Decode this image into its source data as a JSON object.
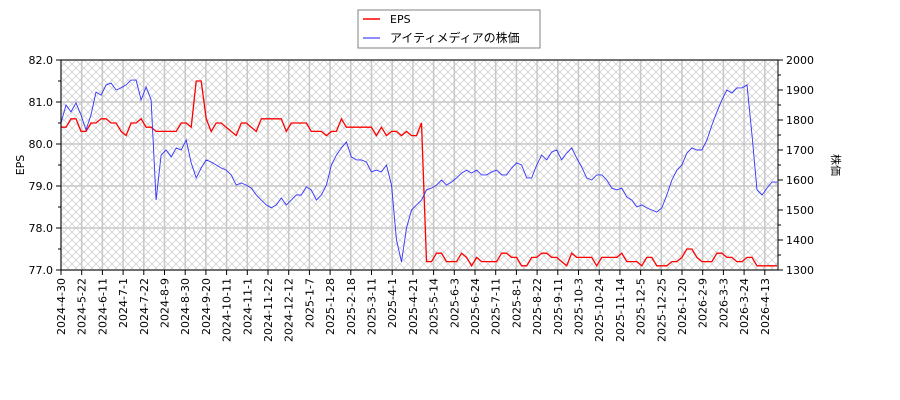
{
  "chart_data": {
    "type": "line",
    "title": "",
    "ylabel": "EPS",
    "y2label": "株価",
    "ylim": [
      77.0,
      82.0
    ],
    "y2lim": [
      1300,
      2000
    ],
    "yticks": [
      "77.0",
      "78.0",
      "79.0",
      "80.0",
      "81.0",
      "82.0"
    ],
    "y2ticks": [
      "1300",
      "1400",
      "1500",
      "1600",
      "1700",
      "1800",
      "1900",
      "2000"
    ],
    "x_range": [
      "2024-4-30",
      "2026-4-21"
    ],
    "xticks": [
      "2024-4-30",
      "2024-5-22",
      "2024-6-11",
      "2024-7-1",
      "2024-7-22",
      "2024-8-9",
      "2024-8-30",
      "2024-9-20",
      "2024-10-11",
      "2024-11-1",
      "2024-11-22",
      "2024-12-12",
      "2025-1-7",
      "2025-1-28",
      "2025-2-18",
      "2025-3-11",
      "2025-4-1",
      "2025-4-21",
      "2025-5-14",
      "2025-6-3",
      "2025-6-24",
      "2025-7-11",
      "2025-8-1",
      "2025-8-22",
      "2025-9-11",
      "2025-10-3",
      "2025-10-24",
      "2025-11-14",
      "2025-12-5",
      "2025-12-25",
      "2026-1-20",
      "2026-2-9",
      "2026-3-3",
      "2026-3-24",
      "2026-4-13"
    ],
    "grid": true,
    "legend_position": "top-center",
    "series": [
      {
        "name": "EPS",
        "axis": "left",
        "color": "#ff0000",
        "values": [
          80.4,
          80.4,
          80.6,
          80.6,
          80.3,
          80.3,
          80.5,
          80.5,
          80.6,
          80.6,
          80.5,
          80.5,
          80.3,
          80.2,
          80.5,
          80.5,
          80.6,
          80.4,
          80.4,
          80.3,
          80.3,
          80.3,
          80.3,
          80.3,
          80.5,
          80.5,
          80.4,
          81.5,
          81.5,
          80.6,
          80.3,
          80.5,
          80.5,
          80.4,
          80.3,
          80.2,
          80.5,
          80.5,
          80.4,
          80.3,
          80.6,
          80.6,
          80.6,
          80.6,
          80.6,
          80.3,
          80.5,
          80.5,
          80.5,
          80.5,
          80.3,
          80.3,
          80.3,
          80.2,
          80.3,
          80.3,
          80.6,
          80.4,
          80.4,
          80.4,
          80.4,
          80.4,
          80.4,
          80.2,
          80.4,
          80.2,
          80.3,
          80.3,
          80.2,
          80.3,
          80.2,
          80.2,
          80.5,
          77.2,
          77.2,
          77.4,
          77.4,
          77.2,
          77.2,
          77.2,
          77.4,
          77.3,
          77.1,
          77.3,
          77.2,
          77.2,
          77.2,
          77.2,
          77.4,
          77.4,
          77.3,
          77.3,
          77.1,
          77.1,
          77.3,
          77.3,
          77.4,
          77.4,
          77.3,
          77.3,
          77.2,
          77.1,
          77.4,
          77.3,
          77.3,
          77.3,
          77.3,
          77.1,
          77.3,
          77.3,
          77.3,
          77.3,
          77.4,
          77.2,
          77.2,
          77.2,
          77.1,
          77.3,
          77.3,
          77.1,
          77.1,
          77.1,
          77.2,
          77.2,
          77.3,
          77.5,
          77.5,
          77.3,
          77.2,
          77.2,
          77.2,
          77.4,
          77.4,
          77.3,
          77.3,
          77.2,
          77.2,
          77.3,
          77.3,
          77.1,
          77.1,
          77.1,
          77.1,
          77.1
        ]
      },
      {
        "name": "アイティメディアの株価",
        "axis": "right",
        "color": "#3333ff",
        "values": [
          1790,
          1850,
          1827,
          1857,
          1817,
          1767,
          1817,
          1893,
          1883,
          1917,
          1923,
          1900,
          1907,
          1917,
          1933,
          1933,
          1867,
          1910,
          1867,
          1533,
          1683,
          1700,
          1677,
          1707,
          1700,
          1733,
          1657,
          1607,
          1640,
          1667,
          1660,
          1650,
          1640,
          1633,
          1617,
          1583,
          1590,
          1583,
          1573,
          1550,
          1533,
          1517,
          1507,
          1517,
          1540,
          1517,
          1533,
          1550,
          1550,
          1577,
          1567,
          1533,
          1550,
          1583,
          1650,
          1683,
          1707,
          1727,
          1677,
          1667,
          1667,
          1660,
          1627,
          1633,
          1627,
          1650,
          1583,
          1400,
          1327,
          1440,
          1500,
          1517,
          1533,
          1567,
          1573,
          1583,
          1600,
          1583,
          1593,
          1607,
          1623,
          1633,
          1623,
          1633,
          1617,
          1617,
          1627,
          1633,
          1617,
          1617,
          1640,
          1657,
          1650,
          1607,
          1607,
          1650,
          1683,
          1667,
          1693,
          1700,
          1667,
          1690,
          1707,
          1673,
          1643,
          1607,
          1600,
          1617,
          1617,
          1600,
          1573,
          1567,
          1573,
          1543,
          1533,
          1510,
          1517,
          1507,
          1500,
          1493,
          1507,
          1550,
          1600,
          1633,
          1650,
          1690,
          1707,
          1700,
          1700,
          1733,
          1783,
          1827,
          1867,
          1900,
          1890,
          1907,
          1907,
          1917,
          1750,
          1567,
          1550,
          1573,
          1593,
          1593
        ]
      }
    ]
  }
}
